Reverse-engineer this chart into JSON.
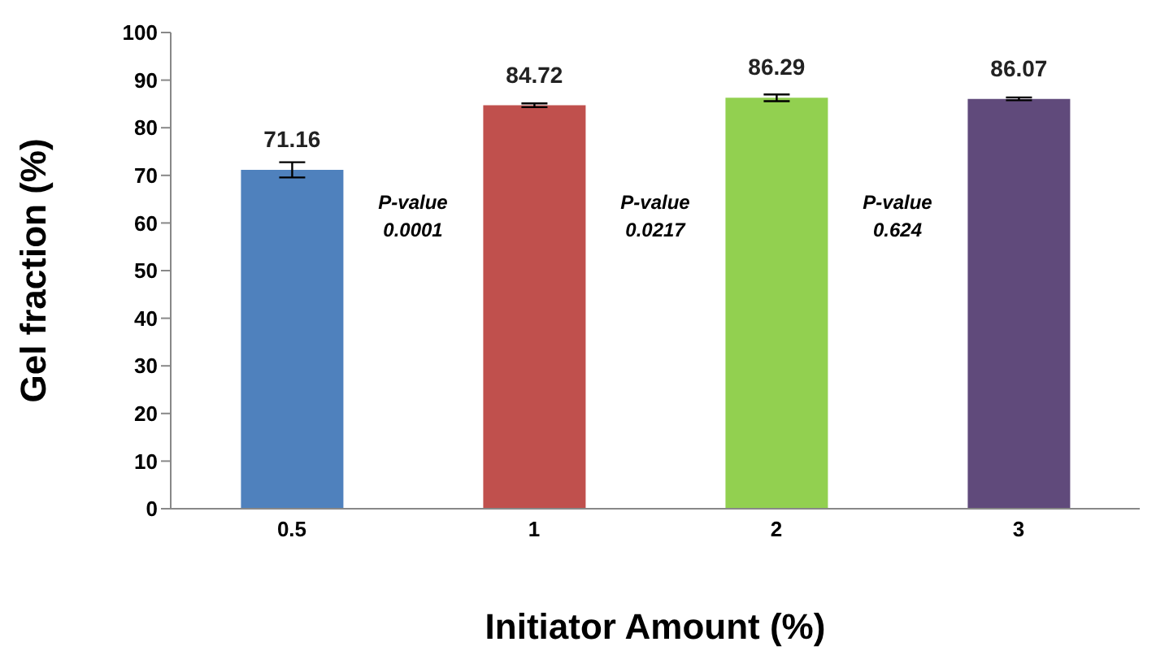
{
  "chart_data": {
    "type": "bar",
    "xlabel": "Initiator Amount (%)",
    "ylabel": "Gel fraction (%)",
    "categories": [
      "0.5",
      "1",
      "2",
      "3"
    ],
    "values": [
      71.16,
      84.72,
      86.29,
      86.07
    ],
    "colors": [
      "#4f81bd",
      "#c0504d",
      "#92d050",
      "#604a7b"
    ],
    "errors": [
      1.6,
      0.4,
      0.7,
      0.3
    ],
    "data_labels": true,
    "ylim": [
      0,
      100
    ],
    "yticks": [
      0,
      10,
      20,
      30,
      40,
      50,
      60,
      70,
      80,
      90,
      100
    ],
    "grid": false,
    "legend": false,
    "annotations": [
      "P-value 0.0001",
      "P-value 0.0217",
      "P-value 0.624"
    ]
  }
}
